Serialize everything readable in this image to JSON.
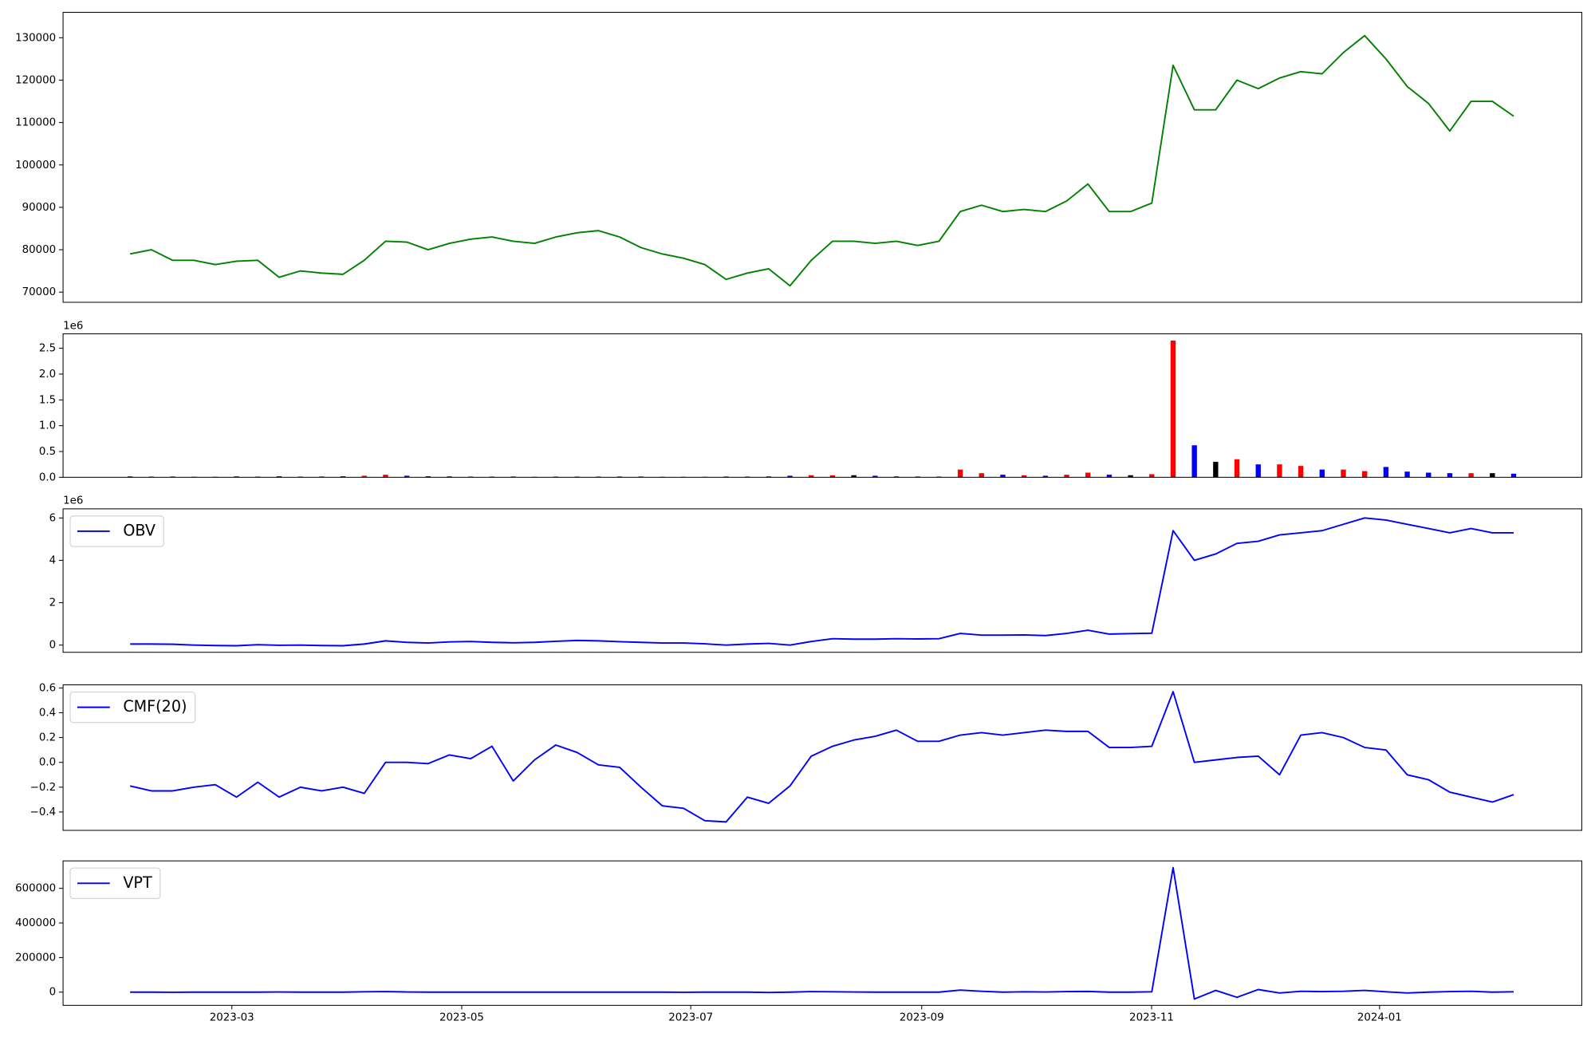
{
  "chart_data": [
    {
      "type": "line",
      "categories": [
        null,
        null,
        null,
        null,
        null,
        null,
        null,
        null,
        null,
        null,
        null,
        null,
        null,
        null,
        null,
        null,
        null,
        null,
        null,
        null,
        null,
        null,
        null,
        null,
        null,
        null,
        null,
        null,
        null,
        null,
        null,
        null,
        null,
        null,
        null,
        null,
        null,
        null,
        null,
        null,
        null,
        null,
        null,
        null,
        null,
        null,
        null,
        null,
        null,
        null,
        null,
        null,
        null,
        null,
        null,
        null,
        null,
        null,
        null,
        null,
        null,
        null,
        null,
        null,
        null,
        null
      ],
      "series": [
        {
          "color": "#008000",
          "values": [
            79000,
            80000,
            77500,
            77500,
            76500,
            77300,
            77500,
            73500,
            75000,
            74500,
            74200,
            77500,
            82000,
            81800,
            80000,
            81500,
            82500,
            83000,
            82000,
            81500,
            83000,
            84000,
            84500,
            83000,
            80500,
            79000,
            78000,
            76500,
            73000,
            74500,
            75500,
            71500,
            77500,
            82000,
            82000,
            81500,
            82000,
            81000,
            82000,
            89000,
            90500,
            89000,
            89500,
            89000,
            91500,
            95500,
            89000,
            89000,
            91000,
            123500,
            113000,
            113000,
            120000,
            118000,
            120500,
            122000,
            121500,
            126500,
            130500,
            125000,
            118500,
            114500,
            108000,
            115000,
            115000,
            111500
          ]
        }
      ],
      "xlim": [
        -3.15,
        68.2
      ],
      "ylim": [
        67600,
        136000
      ],
      "yticks": [
        70000,
        80000,
        90000,
        100000,
        110000,
        120000,
        130000
      ]
    },
    {
      "type": "bar",
      "categories": [
        null,
        null,
        null,
        null,
        null,
        null,
        null,
        null,
        null,
        null,
        null,
        null,
        null,
        null,
        null,
        null,
        null,
        null,
        null,
        null,
        null,
        null,
        null,
        null,
        null,
        null,
        null,
        null,
        null,
        null,
        null,
        null,
        null,
        null,
        null,
        null,
        null,
        null,
        null,
        null,
        null,
        null,
        null,
        null,
        null,
        null,
        null,
        null,
        null,
        null,
        null,
        null,
        null,
        null,
        null,
        null,
        null,
        null,
        null,
        null,
        null,
        null,
        null,
        null,
        null,
        null
      ],
      "values": [
        20000,
        15000,
        15000,
        10000,
        10000,
        20000,
        15000,
        20000,
        15000,
        15000,
        20000,
        30000,
        50000,
        30000,
        20000,
        20000,
        15000,
        15000,
        15000,
        10000,
        15000,
        15000,
        15000,
        15000,
        15000,
        10000,
        10000,
        10000,
        15000,
        15000,
        20000,
        30000,
        40000,
        40000,
        40000,
        30000,
        20000,
        15000,
        15000,
        150000,
        80000,
        50000,
        40000,
        30000,
        50000,
        90000,
        50000,
        40000,
        60000,
        2650000,
        620000,
        300000,
        350000,
        250000,
        250000,
        220000,
        150000,
        150000,
        120000,
        200000,
        110000,
        90000,
        80000,
        80000,
        80000,
        70000
      ],
      "colors": [
        "red",
        "red",
        "blue",
        "black",
        "blue",
        "red",
        "red",
        "blue",
        "red",
        "blue",
        "blue",
        "red",
        "red",
        "blue",
        "blue",
        "red",
        "red",
        "red",
        "blue",
        "blue",
        "red",
        "red",
        "red",
        "blue",
        "blue",
        "blue",
        "blue",
        "blue",
        "blue",
        "red",
        "red",
        "blue",
        "red",
        "red",
        "black",
        "blue",
        "red",
        "blue",
        "red",
        "red",
        "red",
        "blue",
        "red",
        "blue",
        "red",
        "red",
        "blue",
        "black",
        "red",
        "red",
        "blue",
        "black",
        "red",
        "blue",
        "red",
        "red",
        "blue",
        "red",
        "red",
        "blue",
        "blue",
        "blue",
        "blue",
        "red",
        "black",
        "blue"
      ],
      "xlim": [
        -3.15,
        68.2
      ],
      "ylim": [
        0,
        2780000
      ],
      "y_offset_label": "1e6",
      "yticks": [
        {
          "value": 0,
          "label": "0.0"
        },
        {
          "value": 500000,
          "label": "0.5"
        },
        {
          "value": 1000000,
          "label": "1.0"
        },
        {
          "value": 1500000,
          "label": "1.5"
        },
        {
          "value": 2000000,
          "label": "2.0"
        },
        {
          "value": 2500000,
          "label": "2.5"
        }
      ]
    },
    {
      "type": "line",
      "categories": [
        null,
        null,
        null,
        null,
        null,
        null,
        null,
        null,
        null,
        null,
        null,
        null,
        null,
        null,
        null,
        null,
        null,
        null,
        null,
        null,
        null,
        null,
        null,
        null,
        null,
        null,
        null,
        null,
        null,
        null,
        null,
        null,
        null,
        null,
        null,
        null,
        null,
        null,
        null,
        null,
        null,
        null,
        null,
        null,
        null,
        null,
        null,
        null,
        null,
        null,
        null,
        null,
        null,
        null,
        null,
        null,
        null,
        null,
        null,
        null,
        null,
        null,
        null,
        null,
        null,
        null
      ],
      "series": [
        {
          "name": "OBV",
          "color": "#0000ff",
          "values": [
            50000,
            50000,
            40000,
            0,
            -20000,
            -30000,
            20000,
            -10000,
            0,
            -20000,
            -30000,
            50000,
            200000,
            130000,
            100000,
            150000,
            170000,
            130000,
            110000,
            130000,
            180000,
            220000,
            200000,
            160000,
            130000,
            100000,
            100000,
            60000,
            0,
            50000,
            80000,
            0,
            170000,
            300000,
            280000,
            280000,
            300000,
            290000,
            300000,
            550000,
            470000,
            470000,
            480000,
            450000,
            550000,
            700000,
            520000,
            540000,
            560000,
            5400000,
            4000000,
            4300000,
            4800000,
            4900000,
            5200000,
            5300000,
            5400000,
            5700000,
            6000000,
            5900000,
            5700000,
            5500000,
            5300000,
            5500000,
            5300000,
            5300000
          ]
        }
      ],
      "xlim": [
        -3.15,
        68.2
      ],
      "ylim": [
        -340000,
        6430000
      ],
      "y_offset_label": "1e6",
      "legend": "upper left",
      "yticks": [
        0,
        {
          "value": 2000000,
          "label": "2"
        },
        {
          "value": 4000000,
          "label": "4"
        },
        {
          "value": 6000000,
          "label": "6"
        }
      ]
    },
    {
      "type": "line",
      "categories": [
        null,
        null,
        null,
        null,
        null,
        null,
        null,
        null,
        null,
        null,
        null,
        null,
        null,
        null,
        null,
        null,
        null,
        null,
        null,
        null,
        null,
        null,
        null,
        null,
        null,
        null,
        null,
        null,
        null,
        null,
        null,
        null,
        null,
        null,
        null,
        null,
        null,
        null,
        null,
        null,
        null,
        null,
        null,
        null,
        null,
        null,
        null,
        null,
        null,
        null,
        null,
        null,
        null,
        null,
        null,
        null,
        null,
        null,
        null,
        null,
        null,
        null,
        null,
        null,
        null,
        null
      ],
      "series": [
        {
          "name": "CMF(20)",
          "color": "#0000ff",
          "values": [
            -0.19,
            -0.23,
            -0.23,
            -0.2,
            -0.18,
            -0.28,
            -0.16,
            -0.28,
            -0.2,
            -0.23,
            -0.2,
            -0.25,
            0.0,
            0.0,
            -0.01,
            0.06,
            0.03,
            0.13,
            -0.15,
            0.02,
            0.14,
            0.08,
            -0.02,
            -0.04,
            -0.2,
            -0.35,
            -0.37,
            -0.47,
            -0.48,
            -0.28,
            -0.33,
            -0.19,
            0.05,
            0.13,
            0.18,
            0.21,
            0.26,
            0.17,
            0.17,
            0.22,
            0.24,
            0.22,
            0.24,
            0.26,
            0.25,
            0.25,
            0.12,
            0.12,
            0.13,
            0.57,
            0.0,
            0.02,
            0.04,
            0.05,
            -0.1,
            0.22,
            0.24,
            0.2,
            0.12,
            0.1,
            -0.1,
            -0.14,
            -0.24,
            -0.28,
            -0.32,
            -0.26
          ]
        }
      ],
      "xlim": [
        -3.15,
        68.2
      ],
      "ylim": [
        -0.548,
        0.625
      ],
      "legend": "upper left",
      "yticks": [
        {
          "value": -0.4,
          "label": "−0.4"
        },
        {
          "value": -0.2,
          "label": "−0.2"
        },
        {
          "value": 0,
          "label": "0.0"
        },
        0.2,
        0.4,
        0.6
      ]
    },
    {
      "type": "line",
      "categories": [
        null,
        null,
        null,
        null,
        null,
        null,
        null,
        null,
        null,
        null,
        null,
        null,
        null,
        null,
        null,
        null,
        null,
        null,
        null,
        null,
        null,
        null,
        null,
        null,
        null,
        null,
        null,
        null,
        null,
        null,
        null,
        null,
        null,
        null,
        null,
        null,
        null,
        null,
        null,
        null,
        null,
        null,
        null,
        null,
        null,
        null,
        null,
        null,
        null,
        null,
        null,
        null,
        null,
        null,
        null,
        null,
        null,
        null,
        null,
        null,
        null,
        null,
        null,
        null,
        null,
        null
      ],
      "series": [
        {
          "name": "VPT",
          "color": "#0000ff",
          "values": [
            0,
            0,
            -1000,
            0,
            0,
            0,
            0,
            1000,
            0,
            0,
            0,
            2000,
            3000,
            1000,
            0,
            0,
            0,
            0,
            0,
            0,
            0,
            0,
            0,
            0,
            0,
            0,
            -1000,
            0,
            0,
            0,
            -2000,
            0,
            3000,
            2000,
            1000,
            0,
            0,
            0,
            0,
            12000,
            5000,
            0,
            2000,
            1000,
            3000,
            4000,
            0,
            0,
            2000,
            720000,
            -40000,
            10000,
            -30000,
            15000,
            -5000,
            5000,
            3000,
            5000,
            10000,
            2000,
            -5000,
            0,
            3000,
            5000,
            0,
            2000
          ]
        }
      ],
      "xlim": [
        -3.15,
        68.2
      ],
      "ylim": [
        -76500,
        759000
      ],
      "legend": "upper left",
      "yticks": [
        0,
        200000,
        400000,
        600000
      ],
      "xticks": [
        {
          "value": 4.78,
          "label": "2023-03"
        },
        {
          "value": 15.58,
          "label": "2023-05"
        },
        {
          "value": 26.34,
          "label": "2023-07"
        },
        {
          "value": 37.19,
          "label": "2023-09"
        },
        {
          "value": 47.99,
          "label": "2023-11"
        },
        {
          "value": 58.7,
          "label": "2024-01"
        }
      ]
    }
  ]
}
